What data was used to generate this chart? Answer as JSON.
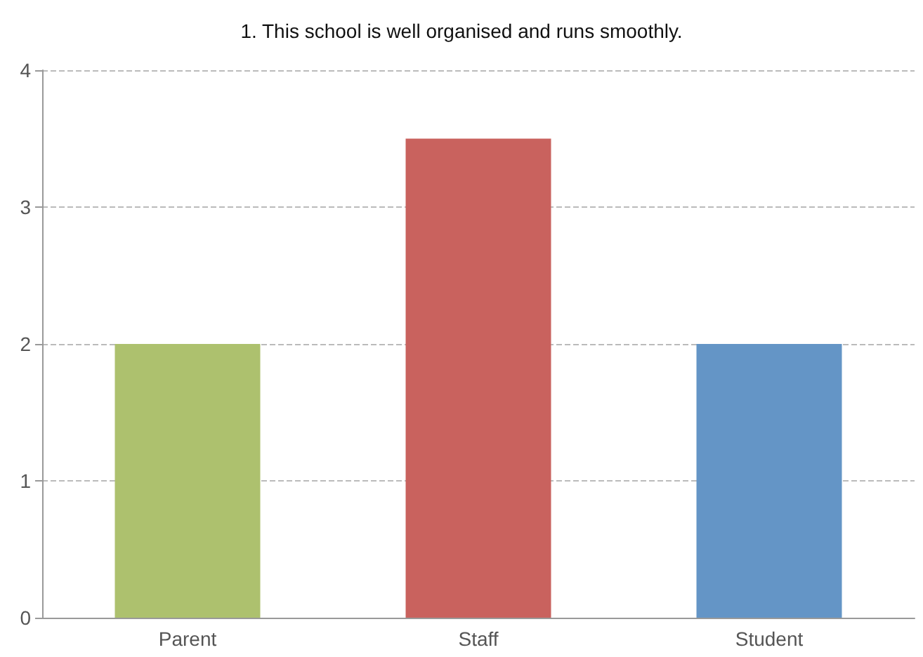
{
  "chart_data": {
    "type": "bar",
    "title": "1. This school is well organised and runs smoothly.",
    "categories": [
      "Parent",
      "Staff",
      "Student"
    ],
    "values": [
      2,
      3.5,
      2
    ],
    "colors": [
      "#adc16e",
      "#c9625e",
      "#6495c6"
    ],
    "ylim": [
      0,
      4
    ],
    "yticks": [
      0,
      1,
      2,
      3,
      4
    ],
    "grid": "y"
  }
}
